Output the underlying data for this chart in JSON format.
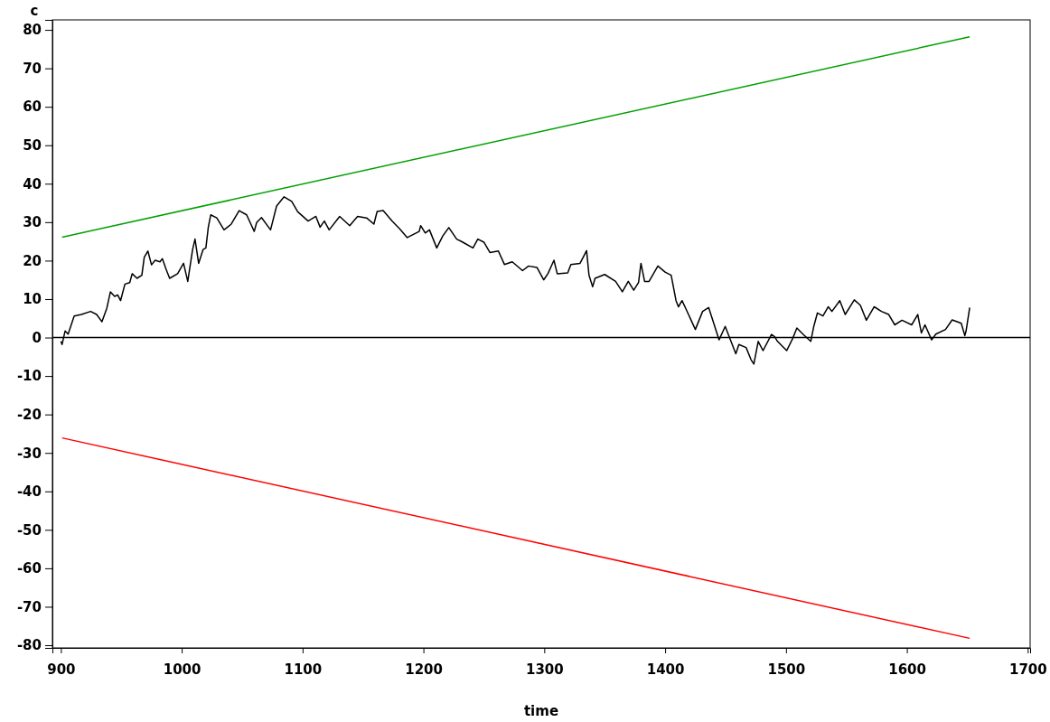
{
  "chart_data": {
    "type": "line",
    "xlabel": "time",
    "ylabel": "c",
    "xlim": [
      893,
      1702
    ],
    "ylim": [
      -80.7,
      82.6
    ],
    "xticks": [
      900,
      1000,
      1100,
      1200,
      1300,
      1400,
      1500,
      1600,
      1700
    ],
    "yticks": [
      -80,
      -70,
      -60,
      -50,
      -40,
      -30,
      -20,
      -10,
      0,
      10,
      20,
      30,
      40,
      50,
      60,
      70,
      80
    ],
    "grid": false,
    "marker": "none",
    "line_style": "solid",
    "ref_lines": [
      {
        "axis": "y",
        "value": 0,
        "color": "#000000"
      }
    ],
    "series": [
      {
        "color": "#000000",
        "x": [
          900,
          901,
          903.5,
          906,
          911,
          917,
          924.6,
          929.6,
          934,
          938,
          941,
          944.5,
          947,
          949.4,
          953,
          957,
          959,
          963,
          967,
          969,
          972,
          975,
          978,
          982,
          984,
          987,
          990,
          996.6,
          1001.5,
          1005,
          1009,
          1011,
          1014,
          1017.7,
          1020,
          1022,
          1024,
          1029,
          1035,
          1041,
          1047.5,
          1053.7,
          1060,
          1062,
          1066,
          1073.5,
          1078.5,
          1084.7,
          1091,
          1096,
          1104.6,
          1111,
          1114.5,
          1118,
          1122,
          1130.7,
          1139,
          1145.5,
          1153,
          1159,
          1161.7,
          1166.7,
          1174,
          1180,
          1186.6,
          1196.5,
          1197.7,
          1201.5,
          1205,
          1211,
          1216,
          1221,
          1227.5,
          1232.5,
          1241,
          1245,
          1250,
          1255,
          1262,
          1267,
          1273.5,
          1282,
          1287,
          1294,
          1299.5,
          1303,
          1308,
          1310.7,
          1319.4,
          1322,
          1329.6,
          1335,
          1337,
          1340,
          1342,
          1350,
          1359,
          1364.6,
          1369.5,
          1374,
          1378,
          1380,
          1383,
          1386.7,
          1394,
          1400,
          1405,
          1409,
          1411,
          1414,
          1417,
          1425,
          1431,
          1436,
          1444.6,
          1449.7,
          1458.5,
          1461,
          1467,
          1471,
          1473.4,
          1477,
          1481,
          1488,
          1490.6,
          1493,
          1500.6,
          1505.6,
          1509,
          1514,
          1520.5,
          1523,
          1526,
          1530.6,
          1535,
          1538,
          1544.5,
          1549,
          1556.5,
          1561.5,
          1566.5,
          1573,
          1579,
          1585,
          1590,
          1596,
          1604,
          1609,
          1612,
          1615,
          1620.5,
          1624,
          1632,
          1637.5,
          1645,
          1648,
          1649,
          1652
        ],
        "values": [
          -1.0,
          -1.8,
          1.7,
          0.9,
          5.6,
          6.0,
          6.8,
          6.0,
          4.1,
          7.6,
          11.9,
          10.7,
          11.1,
          9.6,
          13.9,
          14.3,
          16.6,
          15.4,
          16.2,
          20.9,
          22.5,
          18.9,
          20.1,
          19.7,
          20.5,
          17.8,
          15.4,
          16.6,
          19.3,
          14.6,
          22.9,
          25.6,
          19.3,
          22.9,
          23.3,
          28.7,
          31.9,
          31.1,
          28.0,
          29.5,
          33.0,
          31.9,
          27.6,
          29.9,
          31.2,
          28.0,
          34.2,
          36.6,
          35.4,
          32.7,
          30.3,
          31.5,
          28.7,
          30.3,
          28.0,
          31.5,
          29.1,
          31.5,
          31.1,
          29.5,
          32.8,
          33.0,
          30.3,
          28.4,
          26.0,
          27.6,
          29.1,
          27.2,
          28.0,
          23.3,
          26.4,
          28.6,
          25.6,
          24.8,
          23.3,
          25.6,
          24.8,
          22.1,
          22.5,
          19.0,
          19.7,
          17.4,
          18.6,
          18.2,
          15.0,
          16.6,
          20.1,
          16.6,
          16.8,
          19.0,
          19.3,
          22.6,
          16.2,
          13.2,
          15.4,
          16.4,
          14.6,
          11.9,
          14.6,
          12.3,
          14.3,
          19.3,
          14.6,
          14.6,
          18.6,
          17.0,
          16.2,
          9.6,
          8.0,
          9.6,
          7.6,
          2.1,
          6.8,
          7.8,
          -0.6,
          2.9,
          -4.2,
          -1.8,
          -2.6,
          -5.7,
          -6.9,
          -1.0,
          -3.4,
          0.8,
          0.2,
          -1.0,
          -3.4,
          -0.2,
          2.5,
          0.9,
          -1.0,
          2.9,
          6.4,
          5.6,
          8.0,
          6.8,
          9.6,
          6.0,
          9.8,
          8.4,
          4.5,
          8.0,
          6.8,
          6.0,
          3.3,
          4.5,
          3.3,
          6.0,
          1.2,
          3.3,
          -0.6,
          0.9,
          2.1,
          4.6,
          3.7,
          0.5,
          1.7,
          7.8
        ]
      },
      {
        "color": "#00a000",
        "x": [
          901,
          1652
        ],
        "values": [
          26.1,
          78.2
        ]
      },
      {
        "color": "#ff0000",
        "x": [
          901,
          1652
        ],
        "values": [
          -26.1,
          -78.2
        ]
      }
    ]
  }
}
